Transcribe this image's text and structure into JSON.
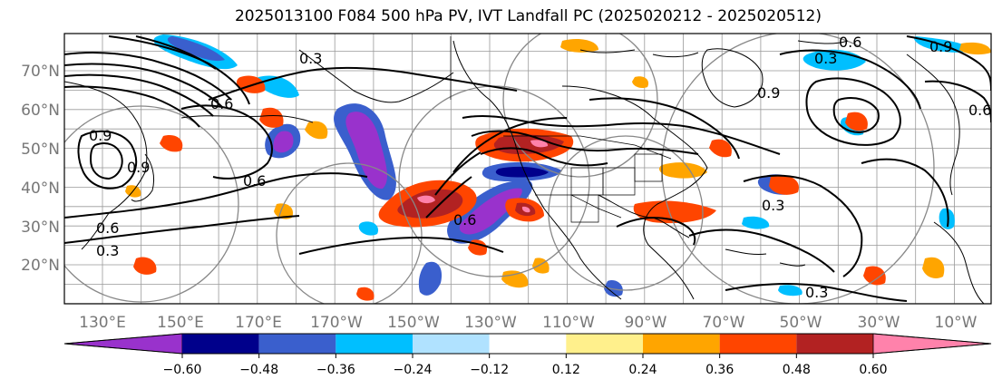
{
  "title": "2025013100 F084 500 hPa PV, IVT Landfall PC (2025020212 - 2025020512)",
  "lat_labels": [
    "70°N",
    "60°N",
    "50°N",
    "40°N",
    "30°N",
    "20°N"
  ],
  "lon_labels": [
    "130°E",
    "150°E",
    "170°E",
    "170°W",
    "150°W",
    "130°W",
    "110°W",
    "90°W",
    "70°W",
    "50°W",
    "30°W",
    "10°W"
  ],
  "colorbar": {
    "ticks": [
      "−0.60",
      "−0.48",
      "−0.36",
      "−0.24",
      "−0.12",
      "0.12",
      "0.24",
      "0.36",
      "0.48",
      "0.60"
    ],
    "colors": [
      "#9932cc",
      "#00008b",
      "#3a5fcd",
      "#00bfff",
      "#b0e2ff",
      "#ffffff",
      "#fff08c",
      "#ffa500",
      "#ff4500",
      "#b22222",
      "#ff82ab"
    ]
  },
  "contour_labels": [
    "0.3",
    "0.6",
    "0.9",
    "0.6",
    "0.9",
    "0.6",
    "0.3",
    "0.3",
    "0.6",
    "0.9",
    "0.6",
    "0.9",
    "0.3",
    "0.6",
    "0.3"
  ],
  "colors": {
    "negative_dark": "#9932cc",
    "negative_blue": "#3a5fcd",
    "negative_cyan": "#00bfff",
    "positive_orange": "#ffa500",
    "positive_red": "#ff4500",
    "positive_dark": "#b22222",
    "positive_pink": "#ff82ab",
    "grid": "#999999",
    "ring": "#888888"
  }
}
